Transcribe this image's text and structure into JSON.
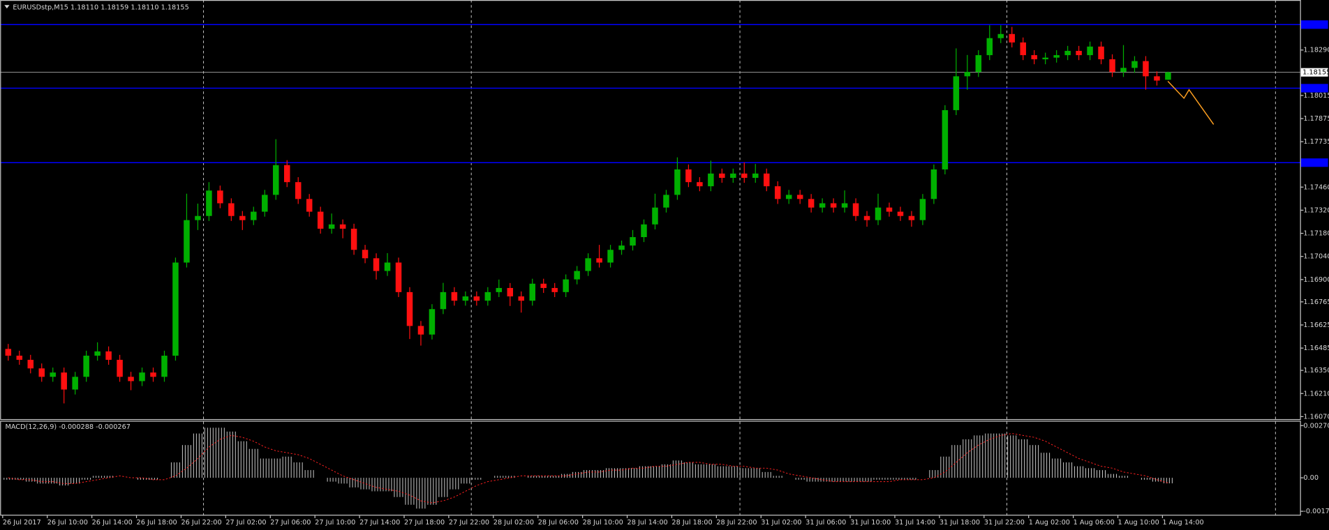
{
  "chart_data": [
    {
      "type": "candlestick",
      "title": "EURUSDstp,M15  1.18110 1.18159 1.18110 1.18155",
      "open": [
        1.1648,
        1.16439,
        1.16414,
        1.16362,
        1.16311,
        1.16337,
        1.16234,
        1.16311,
        1.16439,
        1.16465,
        1.16414,
        1.16311,
        1.16285,
        1.16337,
        1.16311,
        1.16439,
        1.17003,
        1.1726,
        1.17285,
        1.17439,
        1.17362,
        1.17285,
        1.1726,
        1.17311,
        1.17413,
        1.17593,
        1.1749,
        1.17388,
        1.17311,
        1.17208,
        1.17234,
        1.17208,
        1.1708,
        1.17029,
        1.16952,
        1.17003,
        1.16824,
        1.16619,
        1.16567,
        1.16721,
        1.16824,
        1.16772,
        1.16798,
        1.16772,
        1.16824,
        1.16849,
        1.16798,
        1.16772,
        1.16875,
        1.16849,
        1.16824,
        1.16901,
        1.16952,
        1.17029,
        1.17003,
        1.1708,
        1.17106,
        1.17157,
        1.17234,
        1.17336,
        1.17413,
        1.17567,
        1.1749,
        1.17465,
        1.17542,
        1.17516,
        1.17542,
        1.17516,
        1.17542,
        1.17465,
        1.17388,
        1.17413,
        1.17388,
        1.17336,
        1.17362,
        1.17336,
        1.17362,
        1.17285,
        1.1726,
        1.17336,
        1.17311,
        1.17285,
        1.1726,
        1.17388,
        1.17567,
        1.17926,
        1.18131,
        1.18157,
        1.18259,
        1.18362,
        1.18387,
        1.18336,
        1.18259,
        1.18234,
        1.18244,
        1.18259,
        1.18285,
        1.18259,
        1.18311,
        1.18234,
        1.18157,
        1.18182,
        1.18223,
        1.18131,
        1.1811
      ],
      "high": [
        1.1651,
        1.16469,
        1.16444,
        1.16392,
        1.16367,
        1.16367,
        1.16341,
        1.16469,
        1.1652,
        1.16495,
        1.16444,
        1.16341,
        1.16367,
        1.16367,
        1.16469,
        1.17033,
        1.1742,
        1.1736,
        1.1749,
        1.17469,
        1.17392,
        1.17315,
        1.17341,
        1.17443,
        1.1775,
        1.17623,
        1.1752,
        1.17418,
        1.17341,
        1.173,
        1.17264,
        1.17238,
        1.1711,
        1.17059,
        1.1706,
        1.17033,
        1.16854,
        1.16649,
        1.16751,
        1.1688,
        1.16854,
        1.16828,
        1.16828,
        1.16854,
        1.169,
        1.16879,
        1.16828,
        1.16905,
        1.16905,
        1.16879,
        1.16931,
        1.16982,
        1.17059,
        1.1711,
        1.1711,
        1.17136,
        1.172,
        1.17264,
        1.1742,
        1.17443,
        1.1764,
        1.17597,
        1.1752,
        1.1762,
        1.17572,
        1.17572,
        1.1761,
        1.176,
        1.17572,
        1.17495,
        1.17443,
        1.17443,
        1.17418,
        1.17392,
        1.17392,
        1.1744,
        1.17392,
        1.17315,
        1.1742,
        1.17366,
        1.17341,
        1.17315,
        1.17418,
        1.17597,
        1.17956,
        1.183,
        1.1826,
        1.18289,
        1.1844,
        1.1844,
        1.1843,
        1.18366,
        1.18289,
        1.18274,
        1.18289,
        1.18315,
        1.18315,
        1.18341,
        1.18341,
        1.18264,
        1.1832,
        1.18253,
        1.18253,
        1.18161,
        1.18159
      ],
      "low": [
        1.16409,
        1.16384,
        1.16332,
        1.16281,
        1.16281,
        1.1615,
        1.16204,
        1.16281,
        1.16409,
        1.16384,
        1.16281,
        1.1623,
        1.16255,
        1.16281,
        1.16281,
        1.16409,
        1.16973,
        1.172,
        1.17255,
        1.17332,
        1.17255,
        1.172,
        1.1723,
        1.17281,
        1.17383,
        1.1746,
        1.17358,
        1.17281,
        1.17178,
        1.17178,
        1.1715,
        1.1705,
        1.16999,
        1.169,
        1.16922,
        1.16794,
        1.1654,
        1.165,
        1.16537,
        1.16691,
        1.16742,
        1.16742,
        1.16742,
        1.16742,
        1.16794,
        1.1674,
        1.167,
        1.16742,
        1.16819,
        1.16794,
        1.16794,
        1.16871,
        1.16922,
        1.16973,
        1.16973,
        1.1705,
        1.17076,
        1.17127,
        1.17204,
        1.17306,
        1.17383,
        1.1746,
        1.17435,
        1.17435,
        1.17486,
        1.17486,
        1.17486,
        1.17486,
        1.17435,
        1.17358,
        1.17358,
        1.17358,
        1.17306,
        1.17306,
        1.17306,
        1.17306,
        1.17255,
        1.1722,
        1.1723,
        1.17281,
        1.17255,
        1.1722,
        1.1723,
        1.17358,
        1.17537,
        1.17896,
        1.1805,
        1.18127,
        1.18229,
        1.18332,
        1.18306,
        1.18229,
        1.18204,
        1.18204,
        1.18214,
        1.18229,
        1.18229,
        1.18229,
        1.18204,
        1.18127,
        1.18127,
        1.18152,
        1.1805,
        1.18075,
        1.1811
      ],
      "close": [
        1.16439,
        1.16414,
        1.16362,
        1.16311,
        1.16337,
        1.16234,
        1.16311,
        1.16439,
        1.16465,
        1.16414,
        1.16311,
        1.16285,
        1.16337,
        1.16311,
        1.16439,
        1.17003,
        1.1726,
        1.17285,
        1.17439,
        1.17362,
        1.17285,
        1.1726,
        1.17311,
        1.17413,
        1.17593,
        1.1749,
        1.17388,
        1.17311,
        1.17208,
        1.17234,
        1.17208,
        1.1708,
        1.17029,
        1.16952,
        1.17003,
        1.16824,
        1.16619,
        1.16567,
        1.16721,
        1.16824,
        1.16772,
        1.16798,
        1.16772,
        1.16824,
        1.16849,
        1.16798,
        1.16772,
        1.16875,
        1.16849,
        1.16824,
        1.16901,
        1.16952,
        1.17029,
        1.17003,
        1.1708,
        1.17106,
        1.17157,
        1.17234,
        1.17336,
        1.17413,
        1.17567,
        1.1749,
        1.17465,
        1.17542,
        1.17516,
        1.17542,
        1.17516,
        1.17542,
        1.17465,
        1.17388,
        1.17413,
        1.17388,
        1.17336,
        1.17362,
        1.17336,
        1.17362,
        1.17285,
        1.1726,
        1.17336,
        1.17311,
        1.17285,
        1.1726,
        1.17388,
        1.17567,
        1.17926,
        1.18131,
        1.18157,
        1.18259,
        1.18362,
        1.18387,
        1.18336,
        1.18259,
        1.18234,
        1.18244,
        1.18259,
        1.18285,
        1.18259,
        1.18311,
        1.18234,
        1.18157,
        1.18182,
        1.18223,
        1.18131,
        1.18105,
        1.18155
      ],
      "up_color": "#00b000",
      "down_color": "#ff1010",
      "ylim": [
        1.16055,
        1.18593
      ],
      "yticks": [
        {
          "value": 1.1829,
          "label": "1.18290"
        },
        {
          "value": 1.18015,
          "label": "1.18015"
        },
        {
          "value": 1.17875,
          "label": "1.17875"
        },
        {
          "value": 1.17735,
          "label": "1.17735"
        },
        {
          "value": 1.1746,
          "label": "1.17460"
        },
        {
          "value": 1.1732,
          "label": "1.17320"
        },
        {
          "value": 1.1718,
          "label": "1.17180"
        },
        {
          "value": 1.1704,
          "label": "1.17040"
        },
        {
          "value": 1.169,
          "label": "1.16900"
        },
        1.16765,
        1.16625,
        1.16485,
        {
          "value": 1.1635,
          "label": "1.16350"
        },
        {
          "value": 1.1621,
          "label": "1.16210"
        },
        {
          "value": 1.1607,
          "label": "1.16070"
        }
      ],
      "xticks": [
        {
          "value": 0,
          "label": "26 Jul 2017"
        },
        {
          "value": 4,
          "label": "26 Jul 10:00"
        },
        {
          "value": 8,
          "label": "26 Jul 14:00"
        },
        {
          "value": 12,
          "label": "26 Jul 18:00"
        },
        {
          "value": 16,
          "label": "26 Jul 22:00"
        },
        {
          "value": 20,
          "label": "27 Jul 02:00"
        },
        {
          "value": 24,
          "label": "27 Jul 06:00"
        },
        {
          "value": 28,
          "label": "27 Jul 10:00"
        },
        {
          "value": 32,
          "label": "27 Jul 14:00"
        },
        {
          "value": 36,
          "label": "27 Jul 18:00"
        },
        {
          "value": 40,
          "label": "27 Jul 22:00"
        },
        {
          "value": 44,
          "label": "28 Jul 02:00"
        },
        {
          "value": 48,
          "label": "28 Jul 06:00"
        },
        {
          "value": 52,
          "label": "28 Jul 10:00"
        },
        {
          "value": 56,
          "label": "28 Jul 14:00"
        },
        {
          "value": 60,
          "label": "28 Jul 18:00"
        },
        {
          "value": 64,
          "label": "28 Jul 22:00"
        },
        {
          "value": 68,
          "label": "31 Jul 02:00"
        },
        {
          "value": 72,
          "label": "31 Jul 06:00"
        },
        {
          "value": 76,
          "label": "31 Jul 10:00"
        },
        {
          "value": 80,
          "label": "31 Jul 14:00"
        },
        {
          "value": 84,
          "label": "31 Jul 18:00"
        },
        {
          "value": 88,
          "label": "31 Jul 22:00"
        },
        {
          "value": 92,
          "label": "1 Aug 02:00"
        },
        {
          "value": 96,
          "label": "1 Aug 06:00"
        },
        {
          "value": 100,
          "label": "1 Aug 10:00"
        },
        {
          "value": 104,
          "label": "1 Aug 14:00"
        }
      ],
      "hlines": [
        1.18444,
        1.18059,
        1.17608
      ],
      "hline_color": "#0000ff"
    },
    {
      "type": "macd",
      "title": "MACD(12,26,9) -0.000288 -0.000267",
      "histogram": [
        -0.0001,
        -0.0001,
        -0.0002,
        -0.0003,
        -0.0003,
        -0.0004,
        -0.0003,
        -0.0001,
        0.0001,
        0.0001,
        0,
        0,
        -0.0001,
        -0.0001,
        0,
        0.0008,
        0.0017,
        0.0023,
        0.0026,
        0.0026,
        0.0024,
        0.0019,
        0.0015,
        0.001,
        0.001,
        0.0011,
        0.0008,
        0.0004,
        0,
        -0.0002,
        -0.0003,
        -0.0005,
        -0.0006,
        -0.0007,
        -0.0007,
        -0.001,
        -0.0014,
        -0.0016,
        -0.0014,
        -0.001,
        -0.0006,
        -0.0003,
        -0.0001,
        0,
        0.0001,
        0.0001,
        0,
        0.0001,
        0.0001,
        0.0001,
        0.0002,
        0.0003,
        0.0004,
        0.0004,
        0.0005,
        0.0005,
        0.0005,
        0.0006,
        0.0006,
        0.0007,
        0.0009,
        0.0008,
        0.0007,
        0.0007,
        0.0006,
        0.0006,
        0.0005,
        0.0005,
        0.0003,
        0.0001,
        0,
        -0.0001,
        -0.0002,
        -0.0002,
        -0.0002,
        -0.0002,
        -0.0002,
        -0.0002,
        -0.0001,
        -0.0001,
        -0.0001,
        -0.0001,
        0,
        0.0004,
        0.0011,
        0.0017,
        0.002,
        0.0022,
        0.0023,
        0.0023,
        0.0022,
        0.002,
        0.0017,
        0.0013,
        0.001,
        0.0008,
        0.0006,
        0.0005,
        0.0004,
        0.0002,
        0.0001,
        0,
        -0.0001,
        -0.0002,
        -0.000288
      ],
      "signal": [
        0,
        -0.0001,
        -0.0001,
        -0.0002,
        -0.0002,
        -0.0003,
        -0.0003,
        -0.0002,
        -0.0001,
        0,
        0.0001,
        0,
        0,
        -0.0001,
        -0.0001,
        0.0001,
        0.0005,
        0.001,
        0.0016,
        0.002,
        0.0022,
        0.0021,
        0.0019,
        0.0016,
        0.0014,
        0.0013,
        0.0012,
        0.001,
        0.0007,
        0.0004,
        0.0001,
        -0.0001,
        -0.0003,
        -0.0005,
        -0.0006,
        -0.0007,
        -0.0009,
        -0.0012,
        -0.0013,
        -0.0012,
        -0.001,
        -0.0007,
        -0.0004,
        -0.0002,
        -0.0001,
        0,
        0.0001,
        0.0001,
        0.0001,
        0.0001,
        0.0001,
        0.0002,
        0.0003,
        0.0003,
        0.0004,
        0.0004,
        0.0005,
        0.0005,
        0.0006,
        0.0006,
        0.0007,
        0.0008,
        0.0008,
        0.0007,
        0.0007,
        0.0006,
        0.0006,
        0.0005,
        0.0005,
        0.0004,
        0.0002,
        0.0001,
        0,
        -0.0001,
        -0.0002,
        -0.0002,
        -0.0002,
        -0.0002,
        -0.0002,
        -0.0002,
        -0.0001,
        -0.0001,
        -0.0001,
        0,
        0.0003,
        0.0008,
        0.0013,
        0.0017,
        0.002,
        0.0022,
        0.0023,
        0.0022,
        0.0021,
        0.0019,
        0.0016,
        0.0013,
        0.001,
        0.0008,
        0.0006,
        0.0005,
        0.0003,
        0.0002,
        0.0001,
        -0.0001,
        -0.000267
      ],
      "histogram_color": "#d0d0d0",
      "signal_color": "#ff2020",
      "ylim": [
        -0.00192,
        0.00296
      ],
      "yticks": [
        0.002709,
        {
          "value": 0,
          "label": "0.00"
        },
        -0.001739
      ]
    }
  ]
}
